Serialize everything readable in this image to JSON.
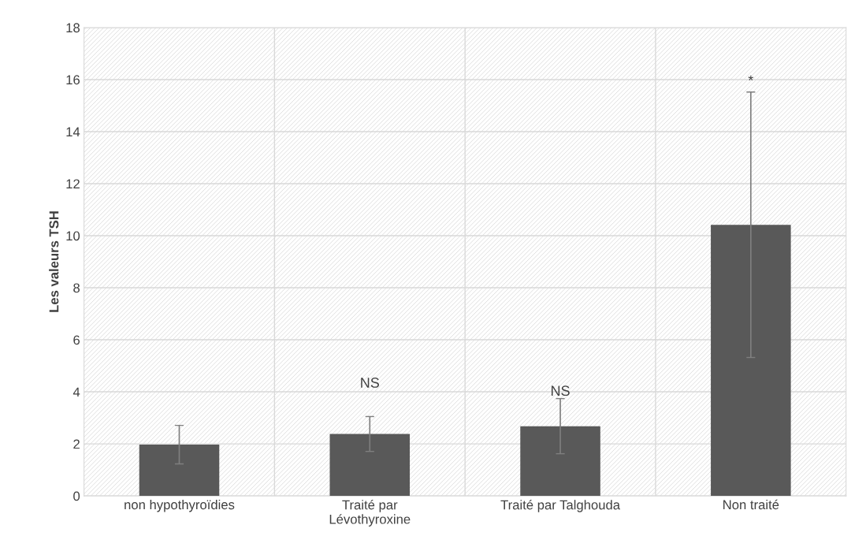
{
  "chart_data": {
    "type": "bar",
    "ylabel": "Les valeurs TSH",
    "categories": [
      "non hypothyroïdies",
      "Traité par\nLévothyroxine",
      "Traité par Talghouda",
      "Non traité"
    ],
    "values": [
      1.97,
      2.38,
      2.68,
      10.42
    ],
    "errors": [
      0.74,
      0.67,
      1.06,
      5.1
    ],
    "color": "#595959",
    "ylim": [
      0,
      18
    ],
    "yticks": [
      0,
      2,
      4,
      6,
      8,
      10,
      12,
      14,
      16,
      18
    ],
    "grid": true,
    "annotations": [
      "NS",
      "NS",
      "*"
    ]
  }
}
